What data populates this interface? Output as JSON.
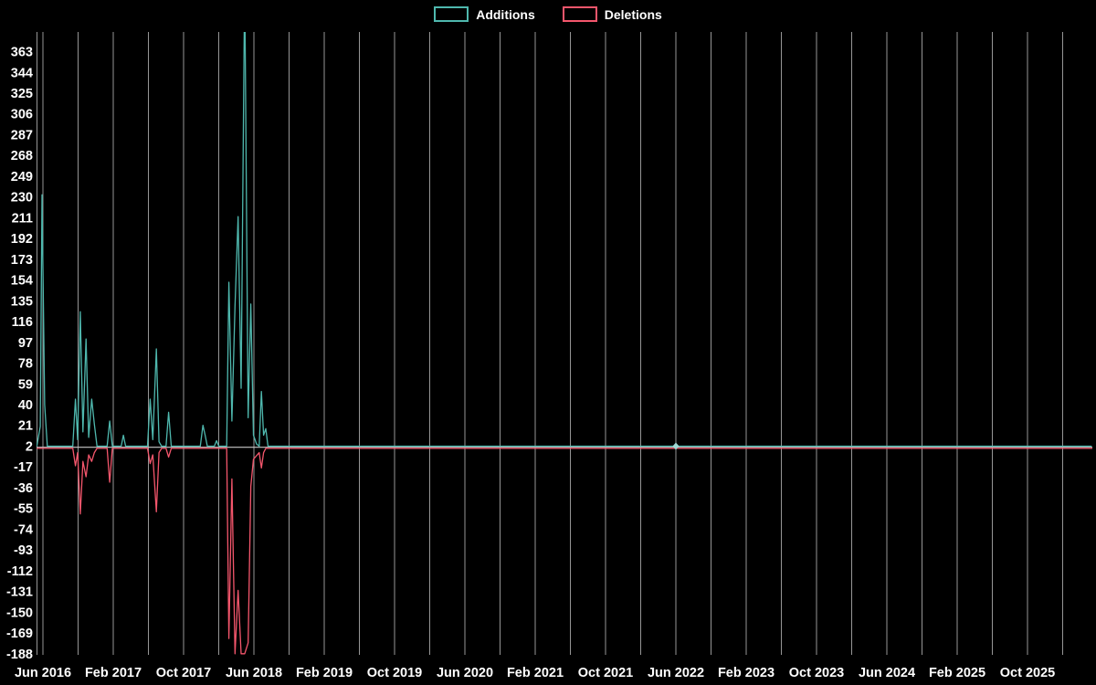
{
  "legend": {
    "additions_label": "Additions",
    "deletions_label": "Deletions"
  },
  "colors": {
    "background": "#000000",
    "text": "#ffffff",
    "grid": "#969696",
    "baseline": "#c8c8c8",
    "additions": "#4fb8ae",
    "deletions": "#f4566c",
    "marker": "#9fd8d4"
  },
  "chart_data": {
    "type": "line",
    "title": "",
    "xlabel": "",
    "ylabel": "",
    "legend_position": "top-center",
    "grid": "vertical-only",
    "x_unit": "months since Jun 2016",
    "grid_month_step": 4,
    "x_domain": [
      -0.7,
      119.4
    ],
    "y_domain": [
      -189,
      381
    ],
    "y_ticks": [
      363,
      344,
      325,
      306,
      287,
      268,
      249,
      230,
      211,
      192,
      173,
      154,
      135,
      116,
      97,
      78,
      59,
      40,
      21,
      2,
      -17,
      -36,
      -55,
      -74,
      -93,
      -112,
      -131,
      -150,
      -169,
      -188
    ],
    "x_ticks": [
      {
        "month": 0,
        "label": "Jun 2016"
      },
      {
        "month": 8,
        "label": "Feb 2017"
      },
      {
        "month": 16,
        "label": "Oct 2017"
      },
      {
        "month": 24,
        "label": "Jun 2018"
      },
      {
        "month": 32,
        "label": "Feb 2019"
      },
      {
        "month": 40,
        "label": "Oct 2019"
      },
      {
        "month": 48,
        "label": "Jun 2020"
      },
      {
        "month": 56,
        "label": "Feb 2021"
      },
      {
        "month": 64,
        "label": "Oct 2021"
      },
      {
        "month": 72,
        "label": "Jun 2022"
      },
      {
        "month": 80,
        "label": "Feb 2023"
      },
      {
        "month": 88,
        "label": "Oct 2023"
      },
      {
        "month": 96,
        "label": "Jun 2024"
      },
      {
        "month": 104,
        "label": "Feb 2025"
      },
      {
        "month": 112,
        "label": "Oct 2025"
      }
    ],
    "series": [
      {
        "name": "Additions",
        "color": "#4fb8ae",
        "baseline": 2,
        "points": [
          [
            -0.7,
            2
          ],
          [
            -0.3,
            20
          ],
          [
            -0.1,
            232
          ],
          [
            0.2,
            40
          ],
          [
            0.5,
            2
          ],
          [
            3.4,
            2
          ],
          [
            3.7,
            45
          ],
          [
            3.95,
            8
          ],
          [
            4.25,
            125
          ],
          [
            4.55,
            15
          ],
          [
            4.9,
            100
          ],
          [
            5.2,
            10
          ],
          [
            5.55,
            45
          ],
          [
            5.85,
            22
          ],
          [
            6.15,
            2
          ],
          [
            7.3,
            2
          ],
          [
            7.6,
            25
          ],
          [
            7.9,
            2
          ],
          [
            8.9,
            2
          ],
          [
            9.15,
            12
          ],
          [
            9.4,
            2
          ],
          [
            11.9,
            2
          ],
          [
            12.2,
            45
          ],
          [
            12.5,
            8
          ],
          [
            12.9,
            91
          ],
          [
            13.2,
            6
          ],
          [
            13.5,
            2
          ],
          [
            14.0,
            2
          ],
          [
            14.3,
            33
          ],
          [
            14.6,
            2
          ],
          [
            17.9,
            2
          ],
          [
            18.2,
            21
          ],
          [
            18.45,
            12
          ],
          [
            18.7,
            2
          ],
          [
            19.5,
            2
          ],
          [
            19.75,
            7
          ],
          [
            20.0,
            2
          ],
          [
            20.9,
            2
          ],
          [
            21.15,
            152
          ],
          [
            21.5,
            25
          ],
          [
            21.85,
            130
          ],
          [
            22.2,
            212
          ],
          [
            22.55,
            55
          ],
          [
            22.95,
            430
          ],
          [
            23.35,
            28
          ],
          [
            23.65,
            132
          ],
          [
            23.95,
            12
          ],
          [
            24.3,
            4
          ],
          [
            24.6,
            2
          ],
          [
            24.85,
            52
          ],
          [
            25.1,
            12
          ],
          [
            25.35,
            18
          ],
          [
            25.6,
            2
          ],
          [
            71.7,
            2
          ],
          [
            72.0,
            3
          ],
          [
            72.3,
            2
          ],
          [
            119.3,
            2
          ]
        ]
      },
      {
        "name": "Deletions",
        "color": "#f4566c",
        "baseline": 0,
        "points": [
          [
            -0.7,
            0
          ],
          [
            3.4,
            0
          ],
          [
            3.7,
            -16
          ],
          [
            3.95,
            -4
          ],
          [
            4.25,
            -60
          ],
          [
            4.55,
            -12
          ],
          [
            4.9,
            -26
          ],
          [
            5.2,
            -6
          ],
          [
            5.55,
            -12
          ],
          [
            5.85,
            -4
          ],
          [
            6.15,
            0
          ],
          [
            7.3,
            0
          ],
          [
            7.6,
            -31
          ],
          [
            7.9,
            0
          ],
          [
            11.9,
            0
          ],
          [
            12.2,
            -14
          ],
          [
            12.5,
            -6
          ],
          [
            12.9,
            -58
          ],
          [
            13.2,
            -4
          ],
          [
            13.5,
            0
          ],
          [
            14.0,
            0
          ],
          [
            14.3,
            -8
          ],
          [
            14.6,
            0
          ],
          [
            20.9,
            0
          ],
          [
            21.15,
            -174
          ],
          [
            21.5,
            -28
          ],
          [
            21.85,
            -188
          ],
          [
            22.2,
            -130
          ],
          [
            22.55,
            -188
          ],
          [
            22.95,
            -188
          ],
          [
            23.35,
            -178
          ],
          [
            23.65,
            -35
          ],
          [
            23.95,
            -10
          ],
          [
            24.6,
            -4
          ],
          [
            24.85,
            -18
          ],
          [
            25.1,
            -4
          ],
          [
            25.35,
            0
          ],
          [
            119.4,
            0
          ]
        ]
      }
    ],
    "markers": [
      {
        "series": "Additions",
        "month": 72,
        "value": 2,
        "shape": "diamond",
        "color": "#9fd8d4"
      }
    ]
  }
}
